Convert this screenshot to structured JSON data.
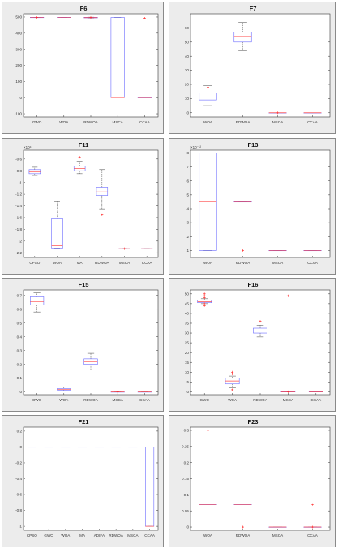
{
  "chart_data": [
    {
      "type": "box",
      "title": "F6",
      "categories": [
        "GWO",
        "WOA",
        "RDWOA",
        "MSCA",
        "CCAA"
      ],
      "ylim": [
        -120,
        520
      ],
      "yticks": [
        -100,
        0,
        100,
        200,
        300,
        400,
        500
      ],
      "ytick_labels": [
        "-100",
        "0",
        "100",
        "200",
        "300",
        "400",
        "500"
      ],
      "boxes": [
        {
          "q1": 496,
          "median": 497,
          "q3": 498,
          "whisker_low": 496,
          "whisker_high": 498,
          "outliers": [
            497
          ]
        },
        {
          "q1": 497,
          "median": 497,
          "q3": 498,
          "whisker_low": 497,
          "whisker_high": 498,
          "outliers": []
        },
        {
          "q1": 495,
          "median": 496,
          "q3": 498,
          "whisker_low": 494,
          "whisker_high": 499,
          "outliers": [
            497
          ]
        },
        {
          "q1": 0,
          "median": 0,
          "q3": 497,
          "whisker_low": 0,
          "whisker_high": 497,
          "outliers": []
        },
        {
          "q1": 0,
          "median": 0,
          "q3": 0,
          "whisker_low": 0,
          "whisker_high": 0,
          "outliers": [
            492
          ]
        }
      ]
    },
    {
      "type": "box",
      "title": "F7",
      "categories": [
        "WOA",
        "RDWOA",
        "MSCA",
        "CCAA"
      ],
      "ylim": [
        -3,
        70
      ],
      "yticks": [
        0,
        10,
        20,
        30,
        40,
        50,
        60
      ],
      "ytick_labels": [
        "0",
        "10",
        "20",
        "30",
        "40",
        "50",
        "60"
      ],
      "boxes": [
        {
          "q1": 9,
          "median": 11,
          "q3": 14,
          "whisker_low": 5,
          "whisker_high": 19,
          "outliers": [
            18
          ]
        },
        {
          "q1": 50,
          "median": 54,
          "q3": 57,
          "whisker_low": 44,
          "whisker_high": 64,
          "outliers": []
        },
        {
          "q1": 0,
          "median": 0,
          "q3": 0,
          "whisker_low": 0,
          "whisker_high": 0,
          "outliers": [
            0
          ]
        },
        {
          "q1": 0,
          "median": 0,
          "q3": 0,
          "whisker_low": 0,
          "whisker_high": 0,
          "outliers": []
        }
      ]
    },
    {
      "type": "box",
      "title": "F11",
      "categories": [
        "CPSO",
        "WOA",
        "MA",
        "RDWOA",
        "MSCA",
        "CCAA"
      ],
      "exponent_label": "×10⁴",
      "ylim": [
        -2.28,
        -0.45
      ],
      "yticks": [
        -2.2,
        -2,
        -1.8,
        -1.6,
        -1.4,
        -1.2,
        -1,
        -0.8,
        -0.6
      ],
      "ytick_labels": [
        "-2.2",
        "-2",
        "-1.8",
        "-1.6",
        "-1.4",
        "-1.2",
        "-1",
        "-0.8",
        "-0.6"
      ],
      "boxes": [
        {
          "q1": -0.85,
          "median": -0.82,
          "q3": -0.78,
          "whisker_low": -0.88,
          "whisker_high": -0.74,
          "outliers": []
        },
        {
          "q1": -2.12,
          "median": -2.08,
          "q3": -1.62,
          "whisker_low": -2.12,
          "whisker_high": -1.33,
          "outliers": []
        },
        {
          "q1": -0.8,
          "median": -0.76,
          "q3": -0.72,
          "whisker_low": -0.85,
          "whisker_high": -0.64,
          "outliers": [
            -0.57
          ]
        },
        {
          "q1": -1.22,
          "median": -1.16,
          "q3": -1.08,
          "whisker_low": -1.45,
          "whisker_high": -0.78,
          "outliers": [
            -1.55
          ]
        },
        {
          "q1": -2.13,
          "median": -2.13,
          "q3": -2.13,
          "whisker_low": -2.13,
          "whisker_high": -2.13,
          "outliers": [
            -2.13
          ]
        },
        {
          "q1": -2.13,
          "median": -2.13,
          "q3": -2.13,
          "whisker_low": -2.13,
          "whisker_high": -2.13,
          "outliers": []
        }
      ]
    },
    {
      "type": "box",
      "title": "F13",
      "categories": [
        "WOA",
        "RDWOA",
        "MSCA",
        "CCAA"
      ],
      "exponent_label": "×10⁻¹²",
      "ylim": [
        0.5,
        8.2
      ],
      "yticks": [
        1,
        2,
        3,
        4,
        5,
        6,
        7,
        8
      ],
      "ytick_labels": [
        "1",
        "2",
        "3",
        "4",
        "5",
        "6",
        "7",
        "8"
      ],
      "boxes": [
        {
          "q1": 1.0,
          "median": 4.5,
          "q3": 8.0,
          "whisker_low": 1.0,
          "whisker_high": 8.0,
          "outliers": []
        },
        {
          "q1": 4.5,
          "median": 4.5,
          "q3": 4.5,
          "whisker_low": 4.5,
          "whisker_high": 4.5,
          "outliers": [
            1.0
          ]
        },
        {
          "q1": 1.0,
          "median": 1.0,
          "q3": 1.0,
          "whisker_low": 1.0,
          "whisker_high": 1.0,
          "outliers": []
        },
        {
          "q1": 1.0,
          "median": 1.0,
          "q3": 1.0,
          "whisker_low": 1.0,
          "whisker_high": 1.0,
          "outliers": []
        }
      ]
    },
    {
      "type": "box",
      "title": "F15",
      "categories": [
        "GWO",
        "WOA",
        "RDWOA",
        "MSCA",
        "CCAA"
      ],
      "ylim": [
        -0.02,
        0.74
      ],
      "yticks": [
        0,
        0.1,
        0.2,
        0.3,
        0.4,
        0.5,
        0.6,
        0.7
      ],
      "ytick_labels": [
        "0",
        "0.1",
        "0.2",
        "0.3",
        "0.4",
        "0.5",
        "0.6",
        "0.7"
      ],
      "boxes": [
        {
          "q1": 0.63,
          "median": 0.655,
          "q3": 0.69,
          "whisker_low": 0.58,
          "whisker_high": 0.72,
          "outliers": []
        },
        {
          "q1": 0.013,
          "median": 0.018,
          "q3": 0.025,
          "whisker_low": 0.008,
          "whisker_high": 0.035,
          "outliers": []
        },
        {
          "q1": 0.2,
          "median": 0.22,
          "q3": 0.24,
          "whisker_low": 0.16,
          "whisker_high": 0.28,
          "outliers": []
        },
        {
          "q1": 0.0,
          "median": 0.0,
          "q3": 0.0,
          "whisker_low": 0.0,
          "whisker_high": 0.0,
          "outliers": [
            0.0
          ]
        },
        {
          "q1": 0.0,
          "median": 0.0,
          "q3": 0.0,
          "whisker_low": 0.0,
          "whisker_high": 0.0,
          "outliers": []
        }
      ]
    },
    {
      "type": "box",
      "title": "F16",
      "categories": [
        "GWO",
        "WOA",
        "RDWOA",
        "MSCA",
        "CCAA"
      ],
      "ylim": [
        -1.5,
        52
      ],
      "yticks": [
        0,
        5,
        10,
        15,
        20,
        25,
        30,
        35,
        40,
        45,
        50
      ],
      "ytick_labels": [
        "0",
        "5",
        "10",
        "15",
        "20",
        "25",
        "30",
        "35",
        "40",
        "45",
        "50"
      ],
      "boxes": [
        {
          "q1": 45.5,
          "median": 46,
          "q3": 46.8,
          "whisker_low": 45,
          "whisker_high": 47.5,
          "outliers": [
            44,
            45,
            48,
            49,
            50
          ]
        },
        {
          "q1": 4,
          "median": 5.5,
          "q3": 7,
          "whisker_low": 2,
          "whisker_high": 8,
          "outliers": [
            1,
            9,
            10
          ]
        },
        {
          "q1": 30,
          "median": 31,
          "q3": 32.5,
          "whisker_low": 28,
          "whisker_high": 34,
          "outliers": [
            36
          ]
        },
        {
          "q1": 0,
          "median": 0,
          "q3": 0,
          "whisker_low": 0,
          "whisker_high": 0,
          "outliers": [
            0,
            49
          ]
        },
        {
          "q1": 0,
          "median": 0,
          "q3": 0,
          "whisker_low": 0,
          "whisker_high": 0,
          "outliers": []
        }
      ]
    },
    {
      "type": "box",
      "title": "F21",
      "categories": [
        "CPSO",
        "GWO",
        "WOA",
        "MA",
        "ADIFA",
        "RDWOA",
        "MSCA",
        "CCAA"
      ],
      "ylim": [
        -1.05,
        0.25
      ],
      "yticks": [
        -1,
        -0.8,
        -0.6,
        -0.4,
        -0.2,
        0,
        0.2
      ],
      "ytick_labels": [
        "-1",
        "-0.8",
        "-0.6",
        "-0.4",
        "-0.2",
        "0",
        "0.2"
      ],
      "boxes": [
        {
          "q1": 0,
          "median": 0,
          "q3": 0,
          "whisker_low": 0,
          "whisker_high": 0,
          "outliers": []
        },
        {
          "q1": 0,
          "median": 0,
          "q3": 0,
          "whisker_low": 0,
          "whisker_high": 0,
          "outliers": []
        },
        {
          "q1": 0,
          "median": 0,
          "q3": 0,
          "whisker_low": 0,
          "whisker_high": 0,
          "outliers": []
        },
        {
          "q1": 0,
          "median": 0,
          "q3": 0,
          "whisker_low": 0,
          "whisker_high": 0,
          "outliers": []
        },
        {
          "q1": 0,
          "median": 0,
          "q3": 0,
          "whisker_low": 0,
          "whisker_high": 0,
          "outliers": []
        },
        {
          "q1": 0,
          "median": 0,
          "q3": 0,
          "whisker_low": 0,
          "whisker_high": 0,
          "outliers": []
        },
        {
          "q1": 0,
          "median": 0,
          "q3": 0,
          "whisker_low": 0,
          "whisker_high": 0,
          "outliers": []
        },
        {
          "q1": -1,
          "median": -1,
          "q3": 0,
          "whisker_low": -1,
          "whisker_high": 0,
          "outliers": []
        }
      ]
    },
    {
      "type": "box",
      "title": "F23",
      "categories": [
        "WOA",
        "RDWOA",
        "MSCA",
        "CCAA"
      ],
      "ylim": [
        -0.01,
        0.31
      ],
      "yticks": [
        0,
        0.05,
        0.1,
        0.15,
        0.2,
        0.25,
        0.3
      ],
      "ytick_labels": [
        "0",
        "0.05",
        "0.1",
        "0.15",
        "0.2",
        "0.25",
        "0.3"
      ],
      "boxes": [
        {
          "q1": 0.07,
          "median": 0.07,
          "q3": 0.07,
          "whisker_low": 0.07,
          "whisker_high": 0.07,
          "outliers": [
            0.3
          ]
        },
        {
          "q1": 0.07,
          "median": 0.07,
          "q3": 0.07,
          "whisker_low": 0.07,
          "whisker_high": 0.07,
          "outliers": [
            0.0
          ]
        },
        {
          "q1": 0.0,
          "median": 0.0,
          "q3": 0.0,
          "whisker_low": 0.0,
          "whisker_high": 0.0,
          "outliers": []
        },
        {
          "q1": 0.0,
          "median": 0.0,
          "q3": 0.0,
          "whisker_low": 0.0,
          "whisker_high": 0.0,
          "outliers": [
            0.07,
            0.0
          ]
        }
      ]
    }
  ],
  "colors": {
    "panel_bg": "#ececec",
    "plot_bg": "#ffffff",
    "box": "#6a6aff",
    "median": "#ff4a4a",
    "whisker": "#444444",
    "outlier": "#ff2222",
    "axis": "#333333",
    "tick_text": "#333333",
    "title": "#111111"
  }
}
